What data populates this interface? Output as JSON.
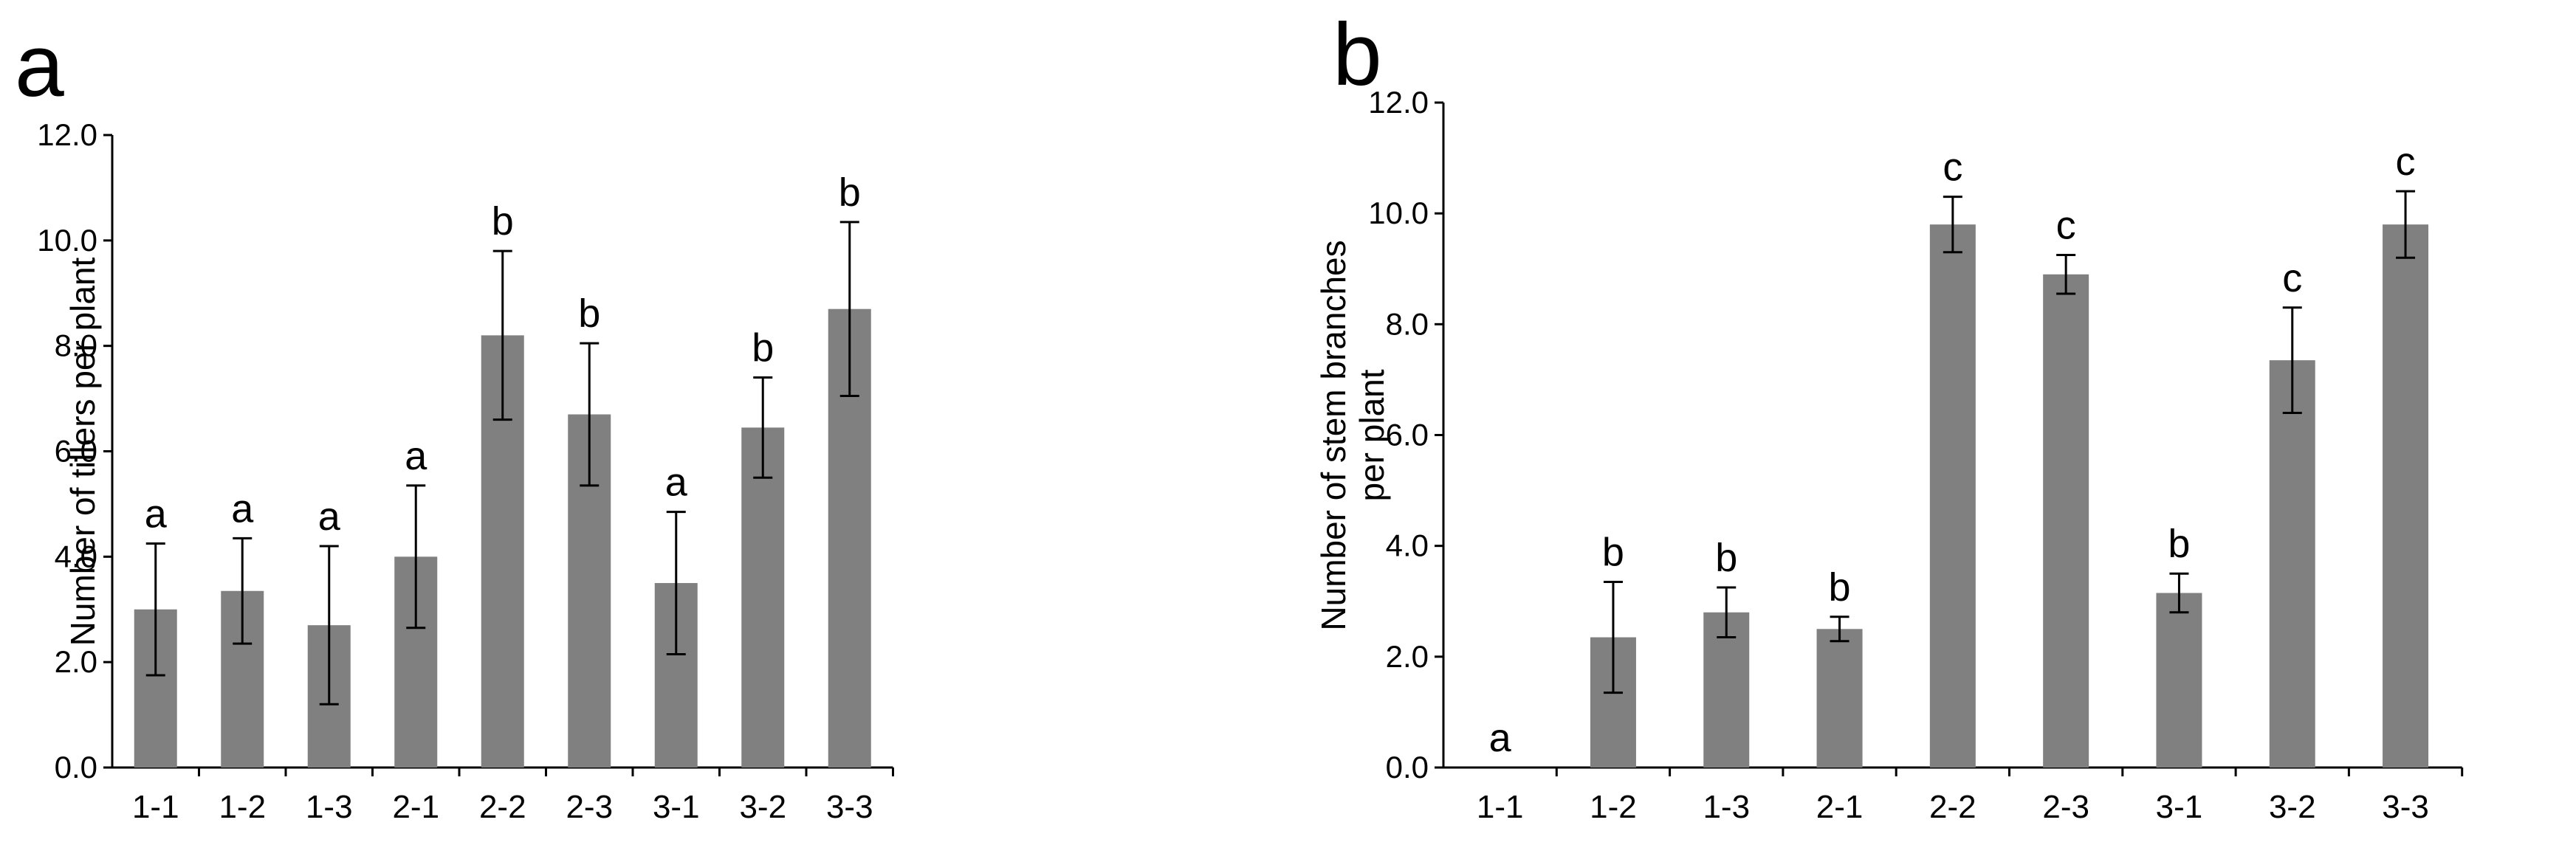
{
  "chart_data": [
    {
      "panel_label": "a",
      "type": "bar",
      "ylabel": [
        "Number of  tillers per plant"
      ],
      "categories": [
        "1-1",
        "1-2",
        "1-3",
        "2-1",
        "2-2",
        "2-3",
        "3-1",
        "3-2",
        "3-3"
      ],
      "values": [
        3.0,
        3.35,
        2.7,
        4.0,
        8.2,
        6.7,
        3.5,
        6.45,
        8.7
      ],
      "errors": [
        1.25,
        1.0,
        1.5,
        1.35,
        1.6,
        1.35,
        1.35,
        0.95,
        1.65
      ],
      "significance": [
        "a",
        "a",
        "a",
        "a",
        "b",
        "b",
        "a",
        "b",
        "b"
      ],
      "ylim": [
        0,
        12
      ],
      "yticks": [
        "0.0",
        "2.0",
        "4.0",
        "6.0",
        "8.0",
        "10.0",
        "12.0"
      ],
      "bar_color": "#808080"
    },
    {
      "panel_label": "b",
      "type": "bar",
      "ylabel": [
        "Number of stem branches",
        "per plant"
      ],
      "categories": [
        "1-1",
        "1-2",
        "1-3",
        "2-1",
        "2-2",
        "2-3",
        "3-1",
        "3-2",
        "3-3"
      ],
      "values": [
        0,
        2.35,
        2.8,
        2.5,
        9.8,
        8.9,
        3.15,
        7.35,
        9.8
      ],
      "errors": [
        0,
        1.0,
        0.45,
        0.22,
        0.5,
        0.35,
        0.35,
        0.95,
        0.6
      ],
      "significance": [
        "a",
        "b",
        "b",
        "b",
        "c",
        "c",
        "b",
        "c",
        "c"
      ],
      "ylim": [
        0,
        12
      ],
      "yticks": [
        "0.0",
        "2.0",
        "4.0",
        "6.0",
        "8.0",
        "10.0",
        "12.0"
      ],
      "bar_color": "#808080"
    }
  ]
}
